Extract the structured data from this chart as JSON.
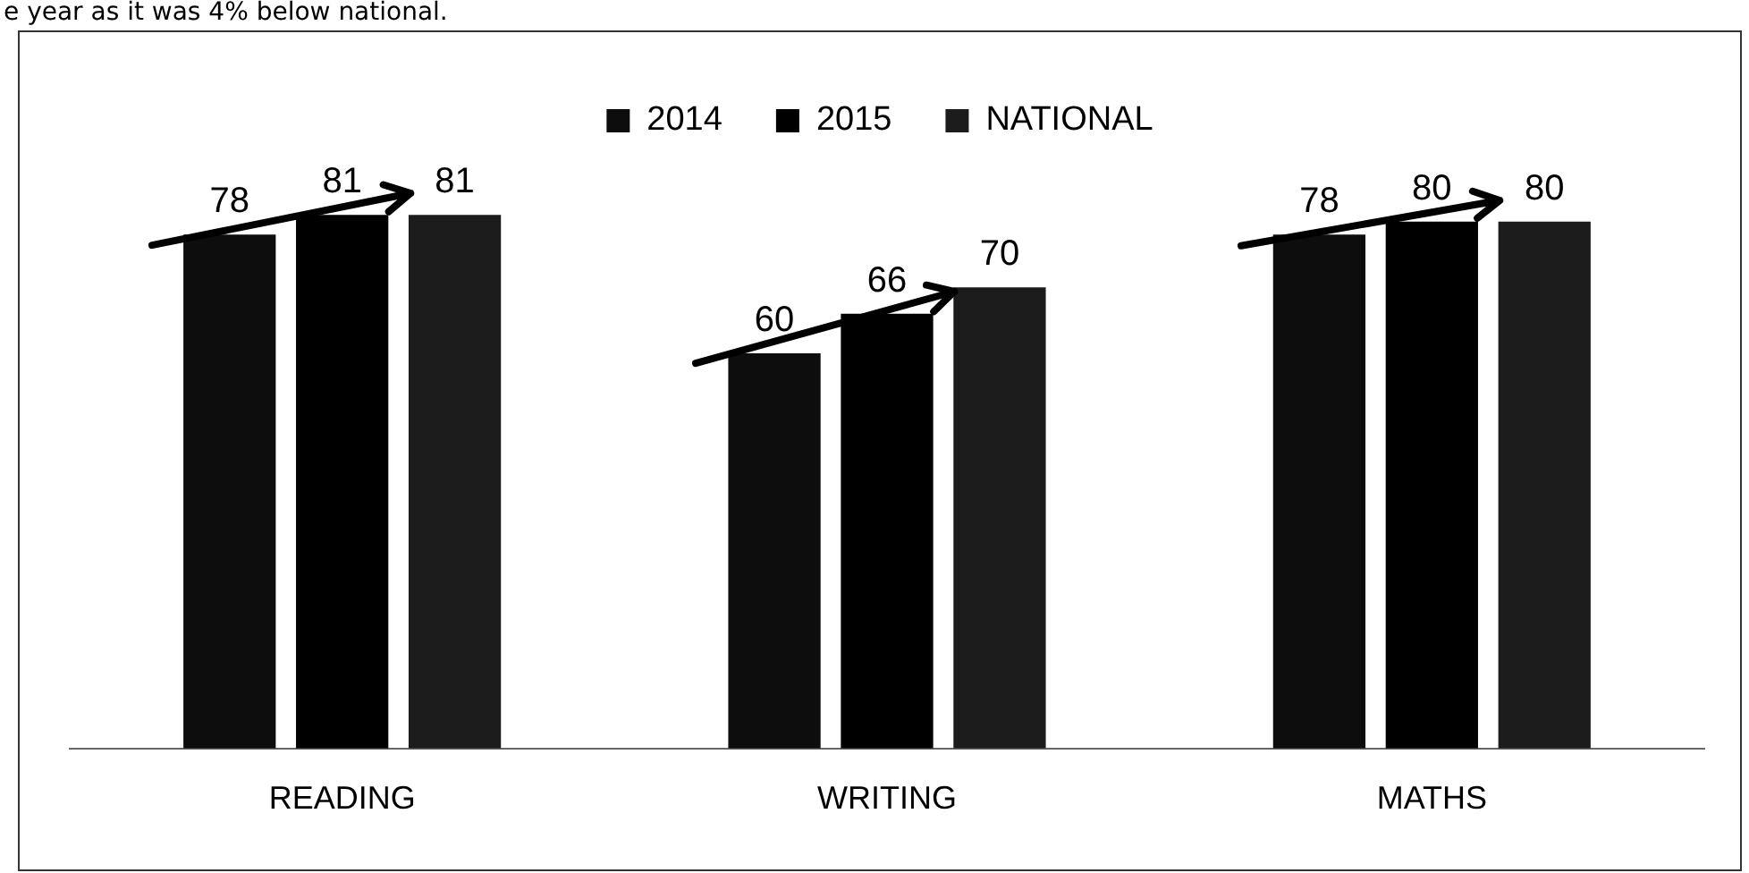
{
  "chart_data": {
    "type": "bar",
    "categories": [
      "READING",
      "WRITING",
      "MATHS"
    ],
    "series": [
      {
        "name": "2014",
        "color": "#0d0d0d",
        "values": [
          78,
          60,
          78
        ]
      },
      {
        "name": "2015",
        "color": "#000000",
        "values": [
          81,
          66,
          80
        ]
      },
      {
        "name": "NATIONAL",
        "color": "#1c1c1c",
        "values": [
          81,
          70,
          80
        ]
      }
    ],
    "relative": false,
    "data_labels": true,
    "legend": "top",
    "grid": false,
    "annotations": [
      "e year as it was 4% below national."
    ]
  }
}
